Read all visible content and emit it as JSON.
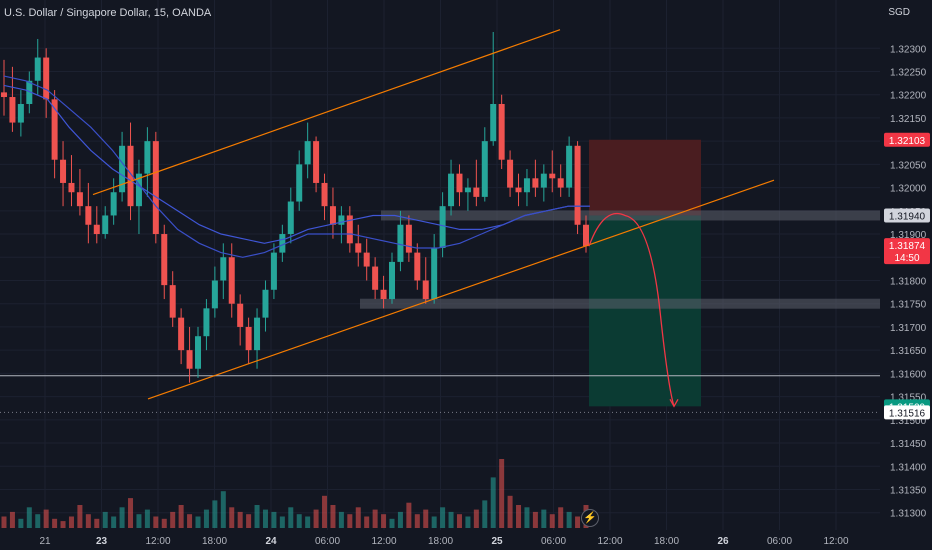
{
  "header": {
    "title": "U.S. Dollar / Singapore Dollar, 15, OANDA",
    "currency": "SGD"
  },
  "price_axis": {
    "min": 1.3128,
    "max": 1.32335
  },
  "price_labels": [
    {
      "text": "1.32103",
      "value": 1.32103,
      "color": "#f23645",
      "fg": "#ffffff"
    },
    {
      "text": "1.31940",
      "value": 1.3194,
      "color": "#d1d4dc",
      "fg": "#131722"
    },
    {
      "text": "1.31874",
      "sub": "14:50",
      "value": 1.31874,
      "color": "#f23645",
      "fg": "#ffffff"
    },
    {
      "text": "1.31529",
      "value": 1.31529,
      "color": "#089981",
      "fg": "#ffffff"
    },
    {
      "text": "1.31516",
      "value": 1.31516,
      "color": "#ffffff",
      "fg": "#131722"
    }
  ],
  "colors": {
    "up": "#26a69a",
    "down": "#ef5350",
    "ma_fast": "#3f56d6",
    "ma_slow": "#3a4fc8",
    "channel": "#f57c00",
    "zone": "#5d606b",
    "stop": "#4a1d20",
    "target": "#0b3b33",
    "arrow": "#f23645"
  },
  "chart_data": {
    "type": "candlestick",
    "title": "U.S. Dollar / Singapore Dollar, 15, OANDA",
    "y_unit": "SGD",
    "ylim": [
      1.3128,
      1.32335
    ],
    "y_ticks": [
      1.323,
      1.3225,
      1.322,
      1.3215,
      1.321,
      1.3205,
      1.32,
      1.3195,
      1.319,
      1.3185,
      1.318,
      1.3175,
      1.317,
      1.3165,
      1.316,
      1.3155,
      1.315,
      1.3145,
      1.314,
      1.3135,
      1.313
    ],
    "y_tick_labels": [
      "1.32300",
      "1.32250",
      "1.32200",
      "1.32150",
      "1.32100",
      "1.32050",
      "1.32000",
      "1.31950",
      "1.31900",
      "1.31850",
      "1.31800",
      "1.31750",
      "1.31700",
      "1.31650",
      "1.31600",
      "1.31550",
      "1.31500",
      "1.31450",
      "1.31400",
      "1.31350",
      "1.31300"
    ],
    "x_tick_labels": [
      "21",
      "23",
      "12:00",
      "18:00",
      "24",
      "06:00",
      "12:00",
      "18:00",
      "25",
      "06:00",
      "12:00",
      "18:00",
      "26",
      "06:00",
      "12:00"
    ],
    "x_tick_index": [
      0,
      3,
      6,
      9,
      12,
      15,
      18,
      21,
      24,
      27,
      30,
      33,
      36,
      39,
      42
    ],
    "x_tick_bold": [
      "23",
      "24",
      "25",
      "26"
    ],
    "close_path": [
      [
        0,
        1.3222
      ],
      [
        1,
        1.3219
      ],
      [
        2,
        1.3226
      ],
      [
        3,
        1.3198
      ],
      [
        4,
        1.3197
      ],
      [
        5,
        1.3199
      ],
      [
        6,
        1.3193
      ],
      [
        7,
        1.3205
      ],
      [
        8,
        1.3187
      ],
      [
        9,
        1.3181
      ],
      [
        10,
        1.3167
      ],
      [
        11,
        1.316
      ],
      [
        12,
        1.3174
      ],
      [
        13,
        1.3166
      ],
      [
        14,
        1.3162
      ],
      [
        15,
        1.3179
      ],
      [
        16,
        1.3197
      ],
      [
        17,
        1.3164
      ],
      [
        18,
        1.3189
      ],
      [
        19,
        1.3198
      ],
      [
        20,
        1.3207
      ],
      [
        21,
        1.3205
      ],
      [
        22,
        1.3203
      ],
      [
        23,
        1.3191
      ],
      [
        24,
        1.3185
      ],
      [
        25,
        1.318
      ],
      [
        26,
        1.3188
      ],
      [
        27,
        1.3175
      ],
      [
        28,
        1.3183
      ],
      [
        29,
        1.3189
      ],
      [
        30,
        1.3177
      ],
      [
        31,
        1.3178
      ],
      [
        32,
        1.3185
      ],
      [
        33,
        1.3193
      ],
      [
        34,
        1.3185
      ],
      [
        35,
        1.3178
      ],
      [
        36,
        1.3182
      ],
      [
        37,
        1.3178
      ],
      [
        38,
        1.318
      ],
      [
        39,
        1.3176
      ],
      [
        40,
        1.3177
      ],
      [
        41,
        1.3175
      ],
      [
        42,
        1.3183
      ],
      [
        43,
        1.319
      ],
      [
        44,
        1.3198
      ],
      [
        45,
        1.3195
      ],
      [
        46,
        1.3203
      ],
      [
        47,
        1.3198
      ],
      [
        48,
        1.3198
      ],
      [
        49,
        1.3198
      ],
      [
        50,
        1.3201
      ],
      [
        51,
        1.3199
      ],
      [
        52,
        1.32
      ],
      [
        53,
        1.3202
      ],
      [
        54,
        1.3207
      ],
      [
        55,
        1.3203
      ],
      [
        56,
        1.3196
      ],
      [
        57,
        1.319
      ],
      [
        58,
        1.3187
      ]
    ],
    "candles": [
      {
        "o": 1.32205,
        "h": 1.32275,
        "l": 1.32155,
        "c": 1.32195
      },
      {
        "o": 1.32195,
        "h": 1.3226,
        "l": 1.3212,
        "c": 1.3214
      },
      {
        "o": 1.3214,
        "h": 1.3221,
        "l": 1.3211,
        "c": 1.3218
      },
      {
        "o": 1.3218,
        "h": 1.3225,
        "l": 1.3216,
        "c": 1.3223
      },
      {
        "o": 1.3223,
        "h": 1.3232,
        "l": 1.322,
        "c": 1.3228
      },
      {
        "o": 1.3228,
        "h": 1.323,
        "l": 1.3215,
        "c": 1.3219
      },
      {
        "o": 1.3219,
        "h": 1.3221,
        "l": 1.3202,
        "c": 1.3206
      },
      {
        "o": 1.3206,
        "h": 1.321,
        "l": 1.3196,
        "c": 1.3201
      },
      {
        "o": 1.3201,
        "h": 1.3207,
        "l": 1.3196,
        "c": 1.3199
      },
      {
        "o": 1.3199,
        "h": 1.3204,
        "l": 1.3194,
        "c": 1.3196
      },
      {
        "o": 1.3196,
        "h": 1.3201,
        "l": 1.3188,
        "c": 1.3192
      },
      {
        "o": 1.3192,
        "h": 1.3196,
        "l": 1.3188,
        "c": 1.319
      },
      {
        "o": 1.319,
        "h": 1.3196,
        "l": 1.3189,
        "c": 1.3194
      },
      {
        "o": 1.3194,
        "h": 1.3202,
        "l": 1.3192,
        "c": 1.3199
      },
      {
        "o": 1.3199,
        "h": 1.3212,
        "l": 1.3197,
        "c": 1.3209
      },
      {
        "o": 1.3209,
        "h": 1.3214,
        "l": 1.3193,
        "c": 1.3196
      },
      {
        "o": 1.3196,
        "h": 1.3206,
        "l": 1.319,
        "c": 1.3203
      },
      {
        "o": 1.3203,
        "h": 1.3213,
        "l": 1.3198,
        "c": 1.321
      },
      {
        "o": 1.321,
        "h": 1.3212,
        "l": 1.3188,
        "c": 1.319
      },
      {
        "o": 1.319,
        "h": 1.3192,
        "l": 1.3176,
        "c": 1.3179
      },
      {
        "o": 1.3179,
        "h": 1.3182,
        "l": 1.317,
        "c": 1.3172
      },
      {
        "o": 1.3172,
        "h": 1.3174,
        "l": 1.3162,
        "c": 1.3165
      },
      {
        "o": 1.3165,
        "h": 1.317,
        "l": 1.3158,
        "c": 1.3161
      },
      {
        "o": 1.3161,
        "h": 1.317,
        "l": 1.3159,
        "c": 1.3168
      },
      {
        "o": 1.3168,
        "h": 1.3176,
        "l": 1.3165,
        "c": 1.3174
      },
      {
        "o": 1.3174,
        "h": 1.3183,
        "l": 1.3172,
        "c": 1.318
      },
      {
        "o": 1.318,
        "h": 1.3188,
        "l": 1.3176,
        "c": 1.3185
      },
      {
        "o": 1.3185,
        "h": 1.3188,
        "l": 1.3172,
        "c": 1.3175
      },
      {
        "o": 1.3175,
        "h": 1.3177,
        "l": 1.3166,
        "c": 1.317
      },
      {
        "o": 1.317,
        "h": 1.3172,
        "l": 1.3162,
        "c": 1.3165
      },
      {
        "o": 1.3165,
        "h": 1.3174,
        "l": 1.3161,
        "c": 1.3172
      },
      {
        "o": 1.3172,
        "h": 1.318,
        "l": 1.3169,
        "c": 1.3178
      },
      {
        "o": 1.3178,
        "h": 1.3188,
        "l": 1.3176,
        "c": 1.3186
      },
      {
        "o": 1.3186,
        "h": 1.3192,
        "l": 1.3184,
        "c": 1.319
      },
      {
        "o": 1.319,
        "h": 1.32,
        "l": 1.3188,
        "c": 1.3197
      },
      {
        "o": 1.3197,
        "h": 1.3208,
        "l": 1.3195,
        "c": 1.3205
      },
      {
        "o": 1.3205,
        "h": 1.3214,
        "l": 1.3202,
        "c": 1.321
      },
      {
        "o": 1.321,
        "h": 1.3211,
        "l": 1.3199,
        "c": 1.3201
      },
      {
        "o": 1.3201,
        "h": 1.3203,
        "l": 1.3193,
        "c": 1.3196
      },
      {
        "o": 1.3196,
        "h": 1.32,
        "l": 1.3189,
        "c": 1.3192
      },
      {
        "o": 1.3192,
        "h": 1.3196,
        "l": 1.3188,
        "c": 1.3194
      },
      {
        "o": 1.3194,
        "h": 1.3196,
        "l": 1.3186,
        "c": 1.3188
      },
      {
        "o": 1.3188,
        "h": 1.3192,
        "l": 1.3183,
        "c": 1.3186
      },
      {
        "o": 1.3186,
        "h": 1.3189,
        "l": 1.318,
        "c": 1.3183
      },
      {
        "o": 1.3183,
        "h": 1.3185,
        "l": 1.3176,
        "c": 1.3178
      },
      {
        "o": 1.3178,
        "h": 1.3181,
        "l": 1.3174,
        "c": 1.3176
      },
      {
        "o": 1.3176,
        "h": 1.3186,
        "l": 1.3175,
        "c": 1.3184
      },
      {
        "o": 1.3184,
        "h": 1.3195,
        "l": 1.3182,
        "c": 1.3192
      },
      {
        "o": 1.3192,
        "h": 1.3194,
        "l": 1.3184,
        "c": 1.3186
      },
      {
        "o": 1.3186,
        "h": 1.3188,
        "l": 1.3178,
        "c": 1.318
      },
      {
        "o": 1.318,
        "h": 1.3185,
        "l": 1.3175,
        "c": 1.3176
      },
      {
        "o": 1.3176,
        "h": 1.319,
        "l": 1.3175,
        "c": 1.3187
      },
      {
        "o": 1.3187,
        "h": 1.3199,
        "l": 1.3185,
        "c": 1.3196
      },
      {
        "o": 1.3196,
        "h": 1.3206,
        "l": 1.3194,
        "c": 1.3203
      },
      {
        "o": 1.3203,
        "h": 1.3205,
        "l": 1.3196,
        "c": 1.3199
      },
      {
        "o": 1.3199,
        "h": 1.3202,
        "l": 1.3195,
        "c": 1.32
      },
      {
        "o": 1.32,
        "h": 1.3206,
        "l": 1.3196,
        "c": 1.3198
      },
      {
        "o": 1.3198,
        "h": 1.3213,
        "l": 1.3197,
        "c": 1.321
      },
      {
        "o": 1.321,
        "h": 1.32335,
        "l": 1.3209,
        "c": 1.3218
      },
      {
        "o": 1.3218,
        "h": 1.322,
        "l": 1.3204,
        "c": 1.3206
      },
      {
        "o": 1.3206,
        "h": 1.3208,
        "l": 1.3198,
        "c": 1.32
      },
      {
        "o": 1.32,
        "h": 1.3203,
        "l": 1.3196,
        "c": 1.3199
      },
      {
        "o": 1.3199,
        "h": 1.3204,
        "l": 1.3196,
        "c": 1.3202
      },
      {
        "o": 1.3202,
        "h": 1.3206,
        "l": 1.3198,
        "c": 1.32
      },
      {
        "o": 1.32,
        "h": 1.3205,
        "l": 1.3197,
        "c": 1.3203
      },
      {
        "o": 1.3203,
        "h": 1.3208,
        "l": 1.3199,
        "c": 1.3202
      },
      {
        "o": 1.3202,
        "h": 1.3205,
        "l": 1.3198,
        "c": 1.32
      },
      {
        "o": 1.32,
        "h": 1.3211,
        "l": 1.3198,
        "c": 1.3209
      },
      {
        "o": 1.3209,
        "h": 1.321,
        "l": 1.319,
        "c": 1.3192
      },
      {
        "o": 1.3192,
        "h": 1.3194,
        "l": 1.3186,
        "c": 1.31874
      }
    ],
    "series": [
      {
        "name": "",
        "type": "moving-average",
        "values": [
          1.3222,
          1.3221,
          1.3219,
          1.3213,
          1.3208,
          1.3204,
          1.3201,
          1.3198,
          1.3195,
          1.3192,
          1.319,
          1.3189,
          1.3188,
          1.3189,
          1.3191,
          1.3192,
          1.3193,
          1.3194,
          1.3194,
          1.3193,
          1.3192,
          1.3191,
          1.3191,
          1.3192,
          1.3194,
          1.3195,
          1.3196,
          1.3196
        ]
      },
      {
        "name": "",
        "type": "moving-average",
        "values": [
          1.3224,
          1.3223,
          1.3221,
          1.3217,
          1.3213,
          1.3208,
          1.3202,
          1.3196,
          1.3191,
          1.3188,
          1.3186,
          1.3185,
          1.3186,
          1.3188,
          1.319,
          1.319,
          1.319,
          1.3189,
          1.3188,
          1.3187,
          1.3187,
          1.3188,
          1.319,
          1.3192,
          1.3194,
          1.3195,
          1.3196,
          1.3196
        ]
      }
    ],
    "volume": [
      5,
      7,
      4,
      9,
      6,
      8,
      4,
      3,
      5,
      10,
      6,
      4,
      7,
      5,
      9,
      13,
      6,
      8,
      5,
      4,
      7,
      10,
      6,
      5,
      8,
      12,
      16,
      9,
      7,
      6,
      10,
      8,
      7,
      5,
      9,
      6,
      5,
      8,
      14,
      10,
      7,
      6,
      9,
      5,
      8,
      6,
      4,
      7,
      11,
      6,
      8,
      5,
      9,
      7,
      6,
      5,
      8,
      12,
      22,
      30,
      14,
      10,
      9,
      7,
      8,
      6,
      9,
      7,
      5,
      10
    ],
    "annotations": {
      "channel_upper": [
        [
          1.31985,
          1.3234
        ]
      ],
      "channel_lower": [
        [
          1.31545,
          1.32016
        ]
      ],
      "resistance_zone": 1.3194,
      "support_zone": 1.3175,
      "horizontal_line": 1.31595,
      "trade": {
        "entry": 1.3194,
        "stop": 1.32103,
        "target": 1.31529
      },
      "projection": "arrow from 1.31874 rises to 1.31940 then drops to 1.31529"
    }
  }
}
